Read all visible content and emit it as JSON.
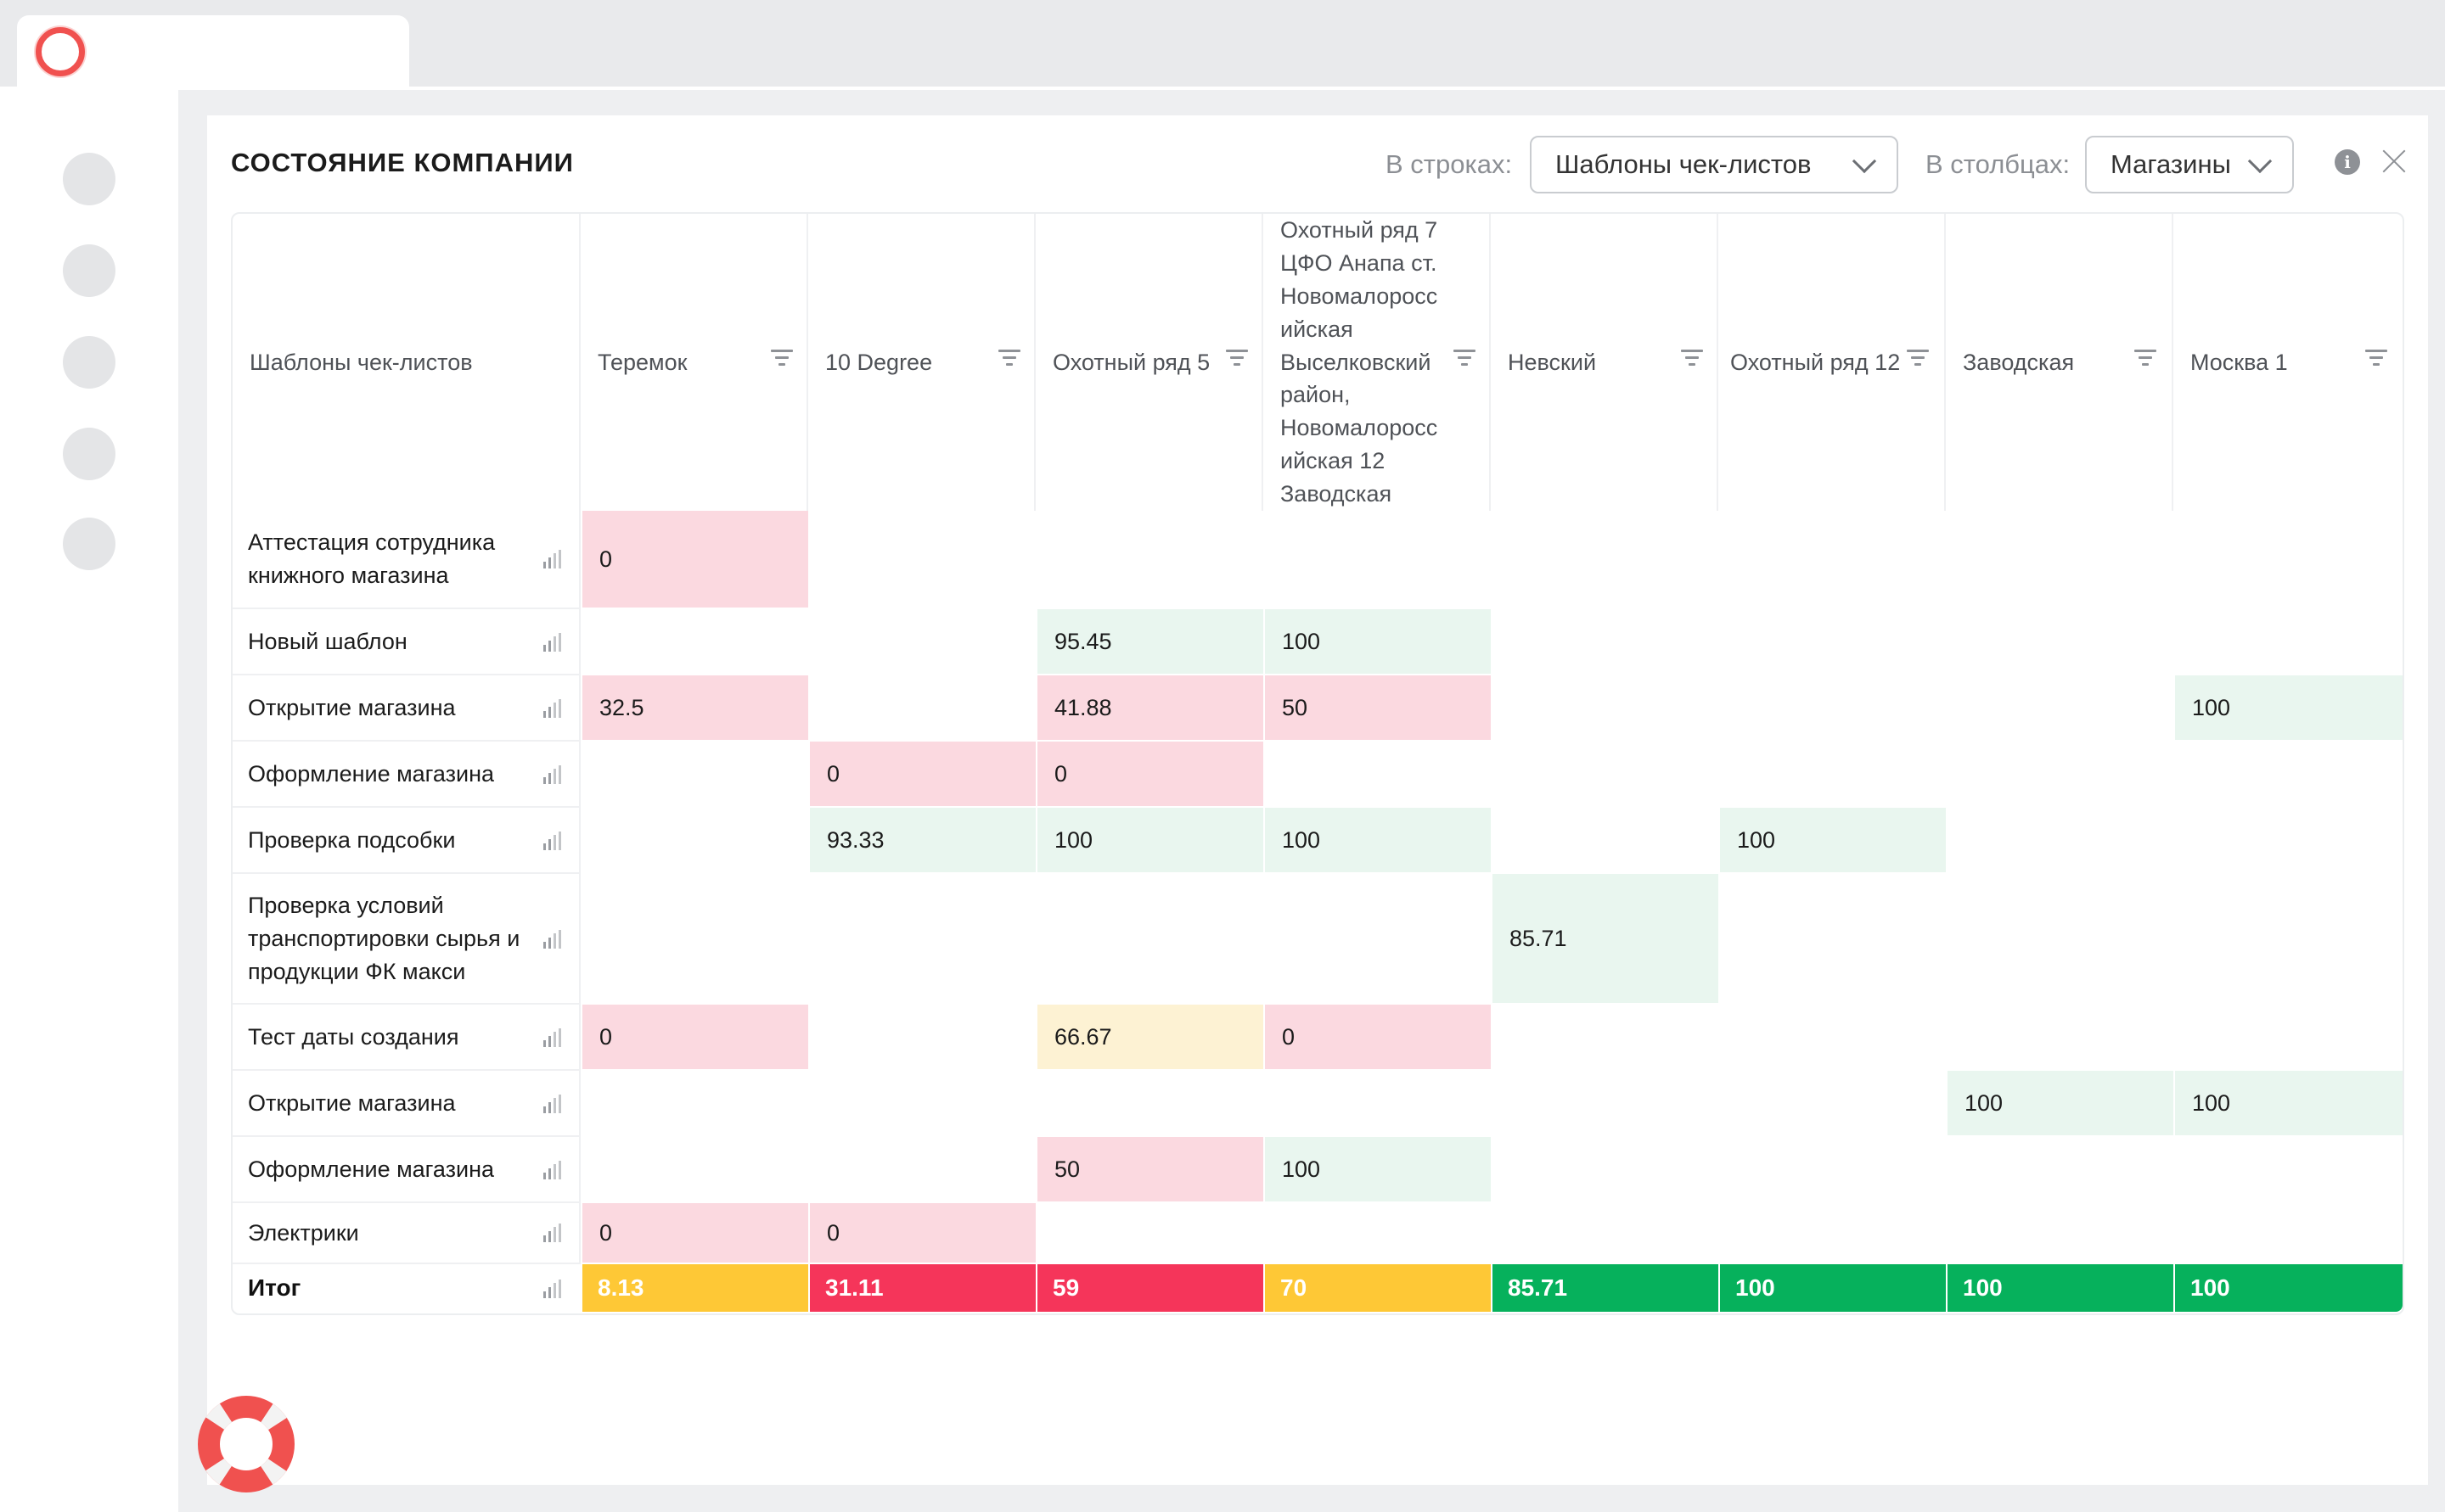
{
  "colors": {
    "bad": "#f5355a",
    "warn": "#fec836",
    "good": "#06b15c",
    "cell_bad": "#fbd9e0",
    "cell_good": "#e9f6ef",
    "cell_warn": "#fdf2d3"
  },
  "panel": {
    "title": "СОСТОЯНИЕ КОМПАНИИ",
    "rows_label": "В строках:",
    "rows_value": "Шаблоны чек-листов",
    "cols_label": "В столбцах:",
    "cols_value": "Магазины",
    "info_icon": "i"
  },
  "table": {
    "corner_header": "Шаблоны чек-листов",
    "columns": [
      "Теремок",
      "10 Degree",
      "Охотный ряд 5",
      "Охотный ряд 7\nЦФО Анапа ст.\nНовомалоросс\nийская\nВыселковский\nрайон,\nНовомалоросс\nийская 12\nЗаводская",
      "Невский",
      "Охотный ряд 12",
      "Заводская",
      "Москва 1"
    ],
    "rows": [
      {
        "label": "Аттестация сотрудника книжного магазина",
        "cells": [
          "0",
          "",
          "",
          "",
          "",
          "",
          "",
          ""
        ]
      },
      {
        "label": "Новый шаблон",
        "cells": [
          "",
          "",
          "95.45",
          "100",
          "",
          "",
          "",
          ""
        ]
      },
      {
        "label": "Открытие магазина",
        "cells": [
          "32.5",
          "",
          "41.88",
          "50",
          "",
          "",
          "",
          "100"
        ]
      },
      {
        "label": "Оформление магазина",
        "cells": [
          "",
          "0",
          "0",
          "",
          "",
          "",
          "",
          ""
        ]
      },
      {
        "label": "Проверка подсобки",
        "cells": [
          "",
          "93.33",
          "100",
          "100",
          "",
          "100",
          "",
          ""
        ]
      },
      {
        "label": "Проверка условий транспортировки сырья и продукции ФК макси",
        "cells": [
          "",
          "",
          "",
          "",
          "85.71",
          "",
          "",
          ""
        ]
      },
      {
        "label": "Тест даты создания",
        "cells": [
          "0",
          "",
          "66.67",
          "0",
          "",
          "",
          "",
          ""
        ]
      },
      {
        "label": "Открытие магазина",
        "cells": [
          "",
          "",
          "",
          "",
          "",
          "",
          "100",
          "100"
        ]
      },
      {
        "label": "Оформление магазина",
        "cells": [
          "",
          "",
          "50",
          "100",
          "",
          "",
          "",
          ""
        ]
      },
      {
        "label": "Электрики",
        "cells": [
          "0",
          "0",
          "",
          "",
          "",
          "",
          "",
          ""
        ]
      }
    ],
    "total_label": "Итог",
    "totals": [
      "8.13",
      "31.11",
      "59",
      "70",
      "85.71",
      "100",
      "100",
      "100"
    ]
  }
}
